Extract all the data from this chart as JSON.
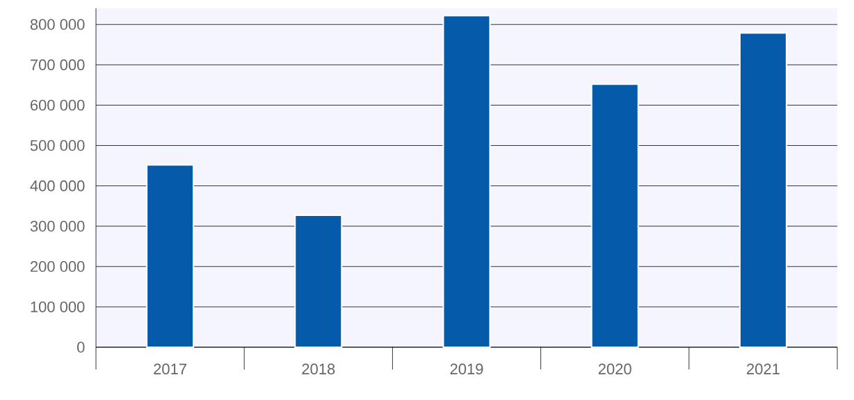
{
  "chart_data": {
    "type": "bar",
    "categories": [
      "2017",
      "2018",
      "2019",
      "2020",
      "2021"
    ],
    "values": [
      452000,
      327000,
      822000,
      652000,
      779000
    ],
    "color": "#055aa9",
    "ylim": [
      0,
      840000
    ],
    "yticks": [
      0,
      {
        "value": 100000,
        "label": "100 000"
      },
      {
        "value": 200000,
        "label": "200 000"
      },
      {
        "value": 300000,
        "label": "300 000"
      },
      {
        "value": 400000,
        "label": "400 000"
      },
      {
        "value": 500000,
        "label": "500 000"
      },
      {
        "value": 600000,
        "label": "600 000"
      },
      {
        "value": 700000,
        "label": "700 000"
      },
      {
        "value": 800000,
        "label": "800 000"
      }
    ],
    "grid": "y"
  }
}
